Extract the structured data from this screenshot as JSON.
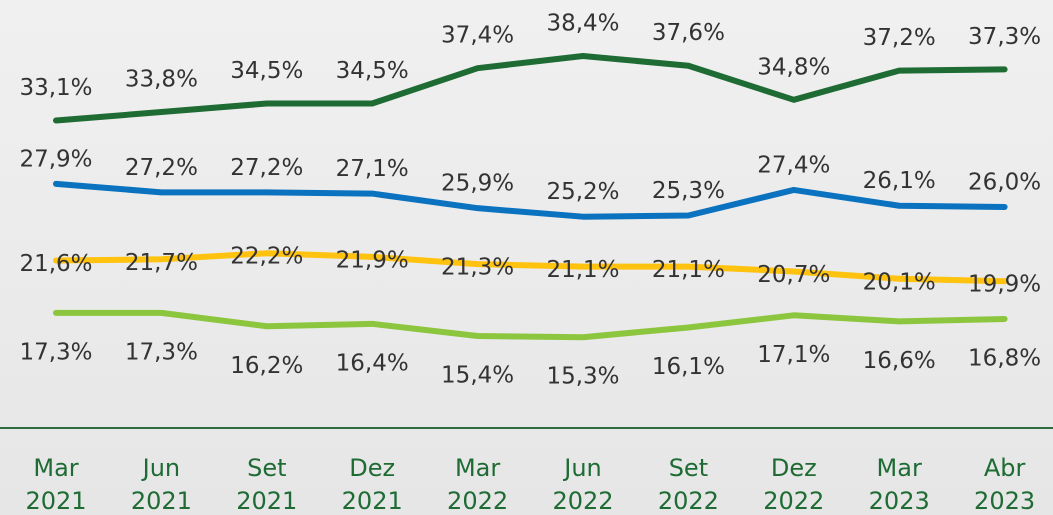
{
  "chart_data": {
    "type": "line",
    "categories": [
      "Mar 2021",
      "Jun 2021",
      "Set 2021",
      "Dez 2021",
      "Mar 2022",
      "Jun 2022",
      "Set 2022",
      "Dez 2022",
      "Mar 2023",
      "Abr 2023"
    ],
    "ylim": [
      8.5,
      43
    ],
    "series": [
      {
        "color": "#1e6b34",
        "values": [
          33.1,
          33.8,
          34.5,
          34.5,
          37.4,
          38.4,
          37.6,
          34.8,
          37.2,
          37.3
        ],
        "value_labels": [
          "33,1%",
          "33,8%",
          "34,5%",
          "34,5%",
          "37,4%",
          "38,4%",
          "37,6%",
          "34,8%",
          "37,2%",
          "37,3%"
        ]
      },
      {
        "color": "#0b72bf",
        "values": [
          27.9,
          27.2,
          27.2,
          27.1,
          25.9,
          25.2,
          25.3,
          27.4,
          26.1,
          26.0
        ],
        "value_labels": [
          "27,9%",
          "27,2%",
          "27,2%",
          "27,1%",
          "25,9%",
          "25,2%",
          "25,3%",
          "27,4%",
          "26,1%",
          "26,0%"
        ]
      },
      {
        "color": "#ffc20e",
        "values": [
          21.6,
          21.7,
          22.2,
          21.9,
          21.3,
          21.1,
          21.1,
          20.7,
          20.1,
          19.9
        ],
        "value_labels": [
          "21,6%",
          "21,7%",
          "22,2%",
          "21,9%",
          "21,3%",
          "21,1%",
          "21,1%",
          "20,7%",
          "20,1%",
          "19,9%"
        ]
      },
      {
        "color": "#8cc63f",
        "values": [
          17.3,
          17.3,
          16.2,
          16.4,
          15.4,
          15.3,
          16.1,
          17.1,
          16.6,
          16.8
        ],
        "value_labels": [
          "17,3%",
          "17,3%",
          "16,2%",
          "16,4%",
          "15,4%",
          "15,3%",
          "16,1%",
          "17,1%",
          "16,6%",
          "16,8%"
        ]
      }
    ]
  }
}
